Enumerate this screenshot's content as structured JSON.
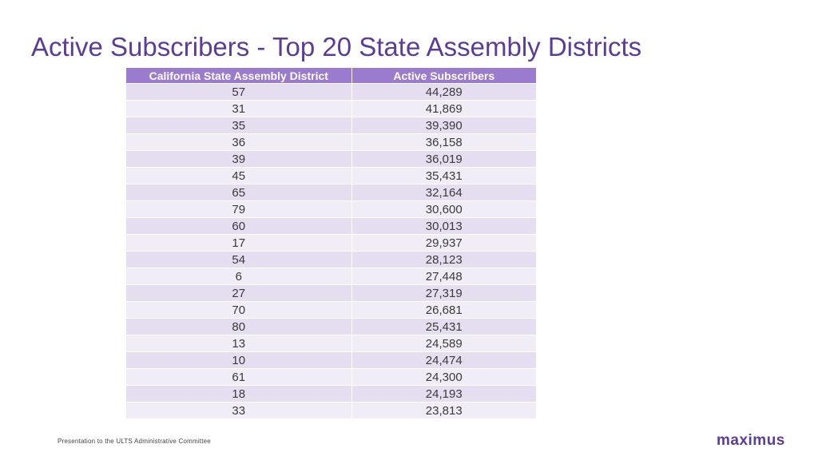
{
  "title": "Active Subscribers - Top 20 State Assembly Districts",
  "table": {
    "headers": [
      "California State Assembly District",
      "Active Subscribers"
    ],
    "rows": [
      [
        "57",
        "44,289"
      ],
      [
        "31",
        "41,869"
      ],
      [
        "35",
        "39,390"
      ],
      [
        "36",
        "36,158"
      ],
      [
        "39",
        "36,019"
      ],
      [
        "45",
        "35,431"
      ],
      [
        "65",
        "32,164"
      ],
      [
        "79",
        "30,600"
      ],
      [
        "60",
        "30,013"
      ],
      [
        "17",
        "29,937"
      ],
      [
        "54",
        "28,123"
      ],
      [
        "6",
        "27,448"
      ],
      [
        "27",
        "27,319"
      ],
      [
        "70",
        "26,681"
      ],
      [
        "80",
        "25,431"
      ],
      [
        "13",
        "24,589"
      ],
      [
        "10",
        "24,474"
      ],
      [
        "61",
        "24,300"
      ],
      [
        "18",
        "24,193"
      ],
      [
        "33",
        "23,813"
      ]
    ]
  },
  "footer": "Presentation to the ULTS Administrative Committee",
  "logo": "maximus",
  "colors": {
    "title": "#5b3d98",
    "header_bg": "#9b7bcd",
    "row_odd": "#e5def0",
    "row_even": "#f1edf6"
  }
}
